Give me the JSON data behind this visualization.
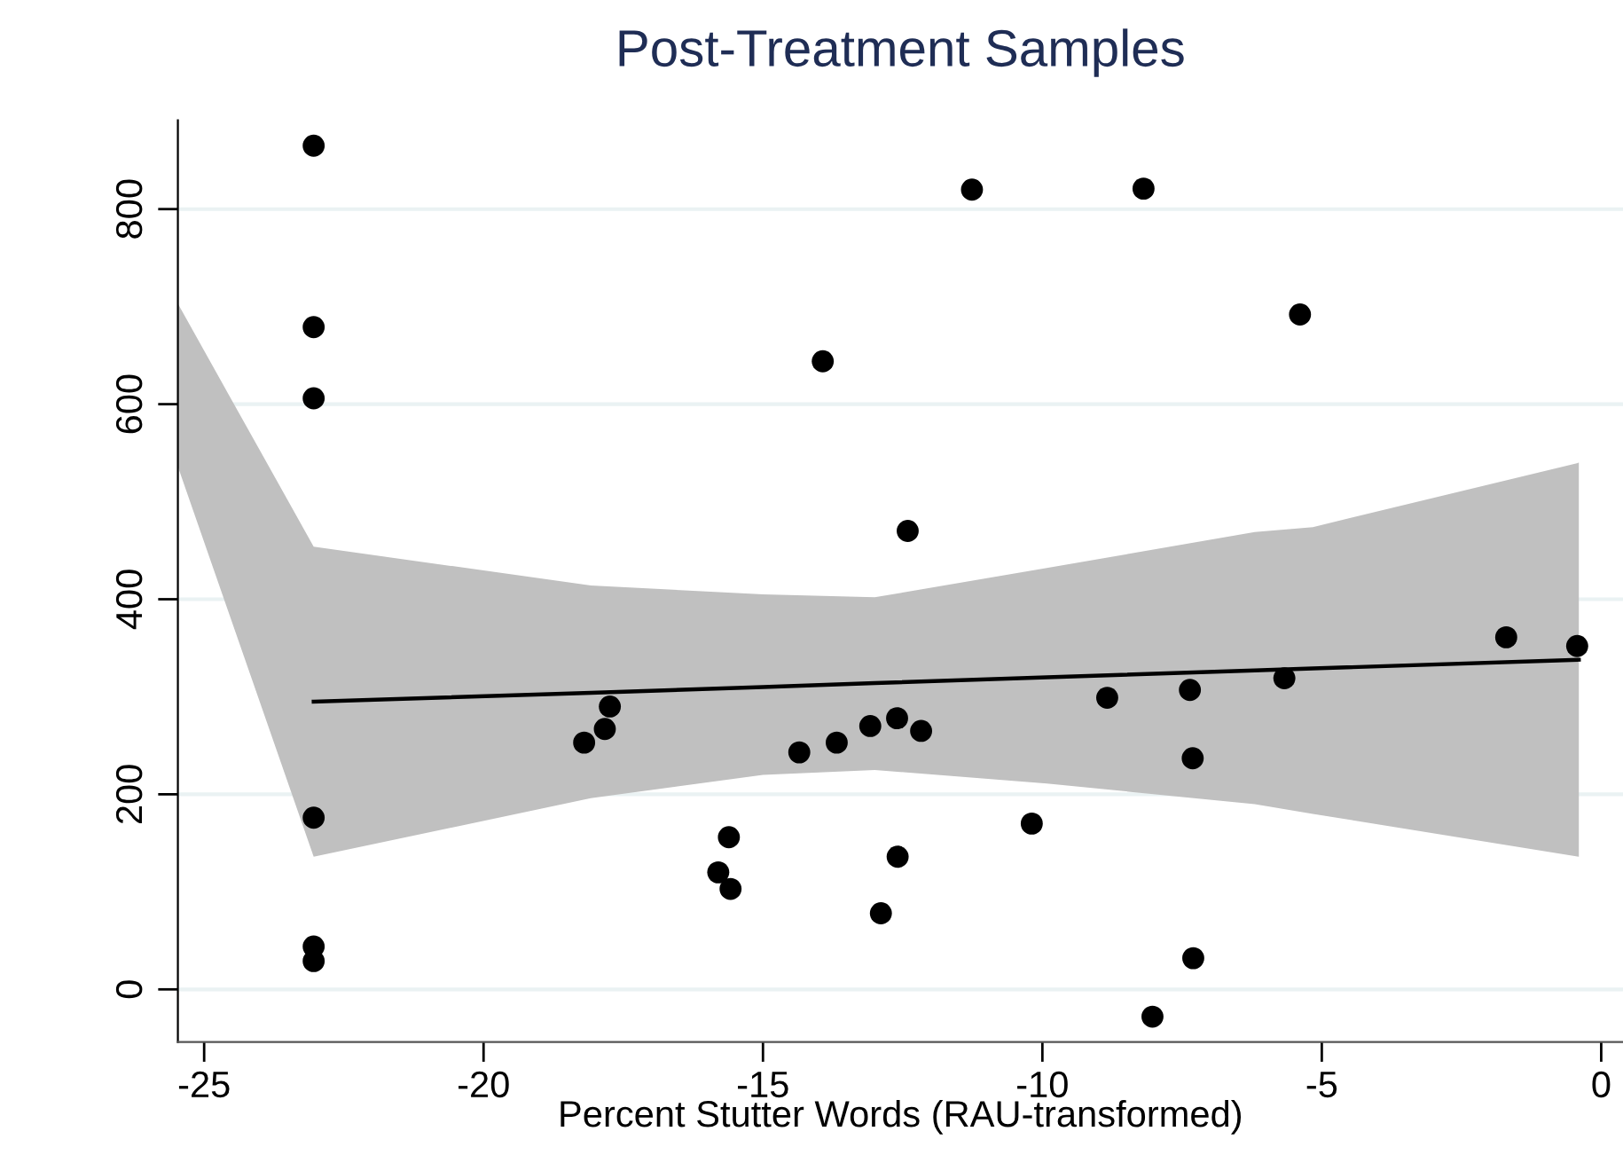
{
  "chart_data": {
    "type": "scatter",
    "title": "Post-Treatment Samples",
    "xlabel": "Percent Stutter Words (RAU-transformed)",
    "xlim": [
      -25.47,
      0.39
    ],
    "ylim": [
      -54,
      891
    ],
    "xticks": [
      -25,
      -20,
      -15,
      -10,
      -5,
      0
    ],
    "yticks": [
      0,
      200,
      400,
      600,
      800
    ],
    "grid": "y",
    "marker": "circle",
    "series": [
      {
        "type": "line",
        "color": "#000000",
        "marker": "none",
        "line_style": "solid",
        "x": [
          -25.47,
          -23.04,
          -18.08,
          -15.0,
          -13.0,
          -9.92,
          -6.2,
          -5.16,
          -0.4
        ],
        "values": [
          null,
          295,
          304,
          310,
          314,
          320,
          327,
          329,
          338
        ],
        "lower": [
          536,
          136,
          196,
          220,
          225,
          211,
          190,
          180,
          136
        ],
        "upper": [
          703,
          454,
          414,
          405,
          402,
          432,
          469,
          474,
          540
        ]
      },
      {
        "color": "#000000",
        "x": [
          -23.04,
          -23.04,
          -23.04,
          -23.04,
          -23.04,
          -23.04,
          -18.2,
          -17.83,
          -17.74,
          -14.35,
          -15.61,
          -15.8,
          -15.58,
          -13.68,
          -13.08,
          -12.6,
          -12.17,
          -12.59,
          -12.89,
          -12.41,
          -10.19,
          -8.84,
          -7.36,
          -7.31,
          -7.3,
          -8.03,
          -5.67,
          -1.7,
          -0.43,
          -13.93,
          -11.26,
          -8.19,
          -5.39
        ],
        "values": [
          865,
          679,
          606,
          176,
          44,
          29,
          253,
          267,
          290,
          243,
          156,
          120,
          103,
          253,
          270,
          278,
          265,
          136,
          78,
          470,
          170,
          299,
          307,
          237,
          32,
          -28,
          319,
          361,
          352,
          644,
          820,
          821,
          692
        ]
      }
    ]
  }
}
